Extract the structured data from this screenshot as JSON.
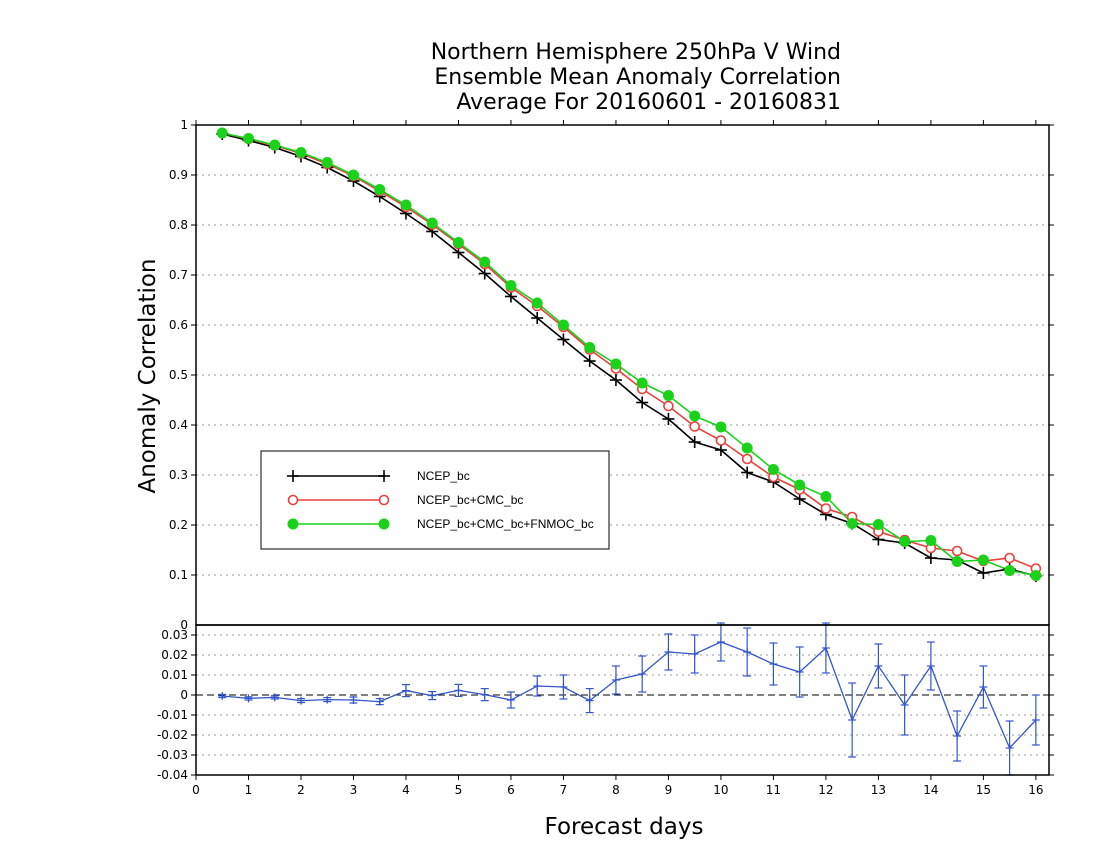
{
  "chart_data": [
    {
      "panel": "main",
      "type": "line",
      "title_lines": [
        "Northern Hemisphere 250hPa V Wind",
        "Ensemble Mean Anomaly Correlation",
        "Average For 20160601 - 20160831"
      ],
      "xlabel": "Forecast days",
      "ylabel": "Anomaly Correlation",
      "xlim": [
        0,
        16.25
      ],
      "ylim": [
        0,
        1
      ],
      "x_ticks": [
        0,
        1,
        2,
        3,
        4,
        5,
        6,
        7,
        8,
        9,
        10,
        11,
        12,
        13,
        14,
        15,
        16
      ],
      "y_ticks": [
        0.1,
        0.2,
        0.3,
        0.4,
        0.5,
        0.6,
        0.7,
        0.8,
        0.9,
        1
      ],
      "y_tick_labels": [
        "0.1",
        "0.2",
        "0.3",
        "0.4",
        "0.5",
        "0.6",
        "0.7",
        "0.8",
        "0.9",
        "1"
      ],
      "grid": "dotted horizontal",
      "legend_position": "center-left",
      "x": [
        0.5,
        1,
        1.5,
        2,
        2.5,
        3,
        3.5,
        4,
        4.5,
        5,
        5.5,
        6,
        6.5,
        7,
        7.5,
        8,
        8.5,
        9,
        9.5,
        10,
        10.5,
        11,
        11.5,
        12,
        12.5,
        13,
        13.5,
        14,
        14.5,
        15,
        15.5,
        16
      ],
      "series": [
        {
          "name": "NCEP_bc",
          "color": "#000000",
          "marker": "plus",
          "values": [
            0.982,
            0.969,
            0.955,
            0.937,
            0.915,
            0.888,
            0.857,
            0.823,
            0.787,
            0.745,
            0.703,
            0.657,
            0.614,
            0.571,
            0.528,
            0.49,
            0.445,
            0.412,
            0.366,
            0.35,
            0.305,
            0.286,
            0.252,
            0.221,
            0.203,
            0.171,
            0.164,
            0.134,
            0.13,
            0.104,
            0.112,
            0.098
          ]
        },
        {
          "name": "NCEP_bc+CMC_bc",
          "color": "#e8403c",
          "marker": "open-circle",
          "values": [
            0.984,
            0.972,
            0.959,
            0.943,
            0.922,
            0.898,
            0.868,
            0.836,
            0.801,
            0.762,
            0.722,
            0.675,
            0.638,
            0.596,
            0.551,
            0.513,
            0.472,
            0.438,
            0.397,
            0.369,
            0.332,
            0.296,
            0.271,
            0.233,
            0.216,
            0.187,
            0.17,
            0.154,
            0.148,
            0.128,
            0.134,
            0.113
          ]
        },
        {
          "name": "NCEP_bc+CMC_bc+FNMOC_bc",
          "color": "#1bd21b",
          "marker": "filled-circle",
          "values": [
            0.984,
            0.973,
            0.96,
            0.945,
            0.925,
            0.9,
            0.871,
            0.84,
            0.804,
            0.765,
            0.726,
            0.679,
            0.644,
            0.6,
            0.555,
            0.522,
            0.484,
            0.459,
            0.418,
            0.396,
            0.354,
            0.311,
            0.28,
            0.257,
            0.203,
            0.201,
            0.167,
            0.169,
            0.127,
            0.13,
            0.109,
            0.099
          ]
        }
      ]
    },
    {
      "panel": "difference",
      "type": "line",
      "xlim": [
        0,
        16.25
      ],
      "ylim": [
        -0.04,
        0.035
      ],
      "y_ticks": [
        -0.04,
        -0.03,
        -0.02,
        -0.01,
        0,
        0.01,
        0.02,
        0.03
      ],
      "y_tick_labels": [
        "-0.04",
        "-0.03",
        "-0.02",
        "-0.01",
        "0",
        "0.01",
        "0.02",
        "0.03"
      ],
      "zero_line": "dashed",
      "grid": "dotted horizontal",
      "color": "#3355cc",
      "x": [
        0.5,
        1,
        1.5,
        2,
        2.5,
        3,
        3.5,
        4,
        4.5,
        5,
        5.5,
        6,
        6.5,
        7,
        7.5,
        8,
        8.5,
        9,
        9.5,
        10,
        10.5,
        11,
        11.5,
        12,
        12.5,
        13,
        13.5,
        14,
        14.5,
        15,
        15.5,
        16
      ],
      "values": [
        -0.0005,
        -0.0017,
        -0.0012,
        -0.0028,
        -0.0023,
        -0.0025,
        -0.0033,
        0.0022,
        -0.0003,
        0.0023,
        0.0002,
        -0.0025,
        0.0045,
        0.004,
        -0.0028,
        0.0075,
        0.0105,
        0.0215,
        0.0205,
        0.0265,
        0.0215,
        0.0155,
        0.0115,
        0.0235,
        -0.0125,
        0.0145,
        -0.005,
        0.0145,
        -0.0205,
        0.004,
        -0.0265,
        -0.0125
      ],
      "error": [
        0.0008,
        0.0008,
        0.0008,
        0.001,
        0.001,
        0.0015,
        0.0015,
        0.003,
        0.002,
        0.003,
        0.003,
        0.004,
        0.005,
        0.006,
        0.006,
        0.007,
        0.009,
        0.009,
        0.0095,
        0.0095,
        0.012,
        0.0105,
        0.0125,
        0.0125,
        0.0185,
        0.011,
        0.015,
        0.012,
        0.0125,
        0.0105,
        0.0135,
        0.0125
      ]
    }
  ]
}
